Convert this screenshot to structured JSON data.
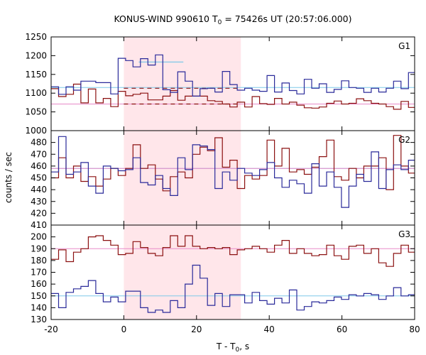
{
  "chart_data": {
    "type": "line",
    "title_main": "KONUS-WIND 990610 T",
    "title_sub": "0",
    "title_rest": " = 75426s UT (20:57:06.000)",
    "xlabel_main": "T - T",
    "xlabel_sub": "0",
    "xlabel_rest": ", s",
    "ylabel": "counts / sec",
    "xlim": [
      -20,
      80
    ],
    "xticks": [
      "-20",
      "0",
      "20",
      "40",
      "60",
      "80"
    ],
    "xtick_values": [
      -20,
      0,
      20,
      40,
      60,
      80
    ],
    "x_step": 2.048,
    "x_start": -20,
    "shaded_interval": [
      0,
      32.2
    ],
    "colors": {
      "shade": "#ffe6ea",
      "blue_hist": "#2a2a9a",
      "red_hist": "#8b1010",
      "blue_bg": "#7ec8e8",
      "red_bg": "#e88ac8"
    },
    "panels": [
      {
        "label": "G1",
        "ylim": [
          1000,
          1250
        ],
        "yticks": [
          "1250",
          "1200",
          "1150",
          "1100",
          "1050",
          "1000"
        ],
        "ytick_values": [
          1250,
          1200,
          1150,
          1100,
          1050,
          1000
        ],
        "blue_bg": 1115,
        "red_bg": 1071,
        "blue_values": [
          1117,
          1097,
          1117,
          1108,
          1132,
          1132,
          1128,
          1128,
          1098,
          1193,
          1187,
          1170,
          1192,
          1175,
          1202,
          1109,
          1102,
          1157,
          1132,
          1092,
          1112,
          1113,
          1103,
          1158,
          1123,
          1108,
          1113,
          1108,
          1105,
          1147,
          1103,
          1127,
          1107,
          1098,
          1137,
          1113,
          1125,
          1102,
          1110,
          1133,
          1115,
          1113,
          1102,
          1113,
          1103,
          1113,
          1132,
          1112,
          1155
        ],
        "red_values": [
          1112,
          1091,
          1097,
          1124,
          1074,
          1111,
          1074,
          1086,
          1064,
          1105,
          1093,
          1097,
          1100,
          1082,
          1082,
          1092,
          1107,
          1081,
          1092,
          1092,
          1092,
          1080,
          1078,
          1071,
          1063,
          1076,
          1063,
          1091,
          1072,
          1070,
          1086,
          1071,
          1076,
          1068,
          1061,
          1060,
          1063,
          1073,
          1079,
          1071,
          1073,
          1085,
          1080,
          1073,
          1071,
          1064,
          1057,
          1078,
          1062
        ],
        "blue_step_levels": [
          1183,
          1183,
          1183,
          1183,
          1183,
          1183
        ],
        "blue_step_range": [
          4.096,
          16.384
        ],
        "red_dashed_levels": [
          1113,
          1071
        ],
        "red_dashed_range": [
          0,
          32.2
        ]
      },
      {
        "label": "G2",
        "ylim": [
          410,
          490
        ],
        "yticks": [
          "480",
          "470",
          "460",
          "450",
          "440",
          "430",
          "420",
          "410"
        ],
        "ytick_values": [
          480,
          470,
          460,
          450,
          440,
          430,
          420,
          410
        ],
        "blue_bg": 458,
        "red_bg": 458,
        "blue_values": [
          455,
          485,
          453,
          455,
          463,
          443,
          437,
          460,
          458,
          456,
          457,
          467,
          446,
          444,
          452,
          441,
          435,
          467,
          457,
          478,
          477,
          474,
          441,
          455,
          448,
          458,
          454,
          452,
          457,
          463,
          450,
          442,
          448,
          445,
          437,
          462,
          443,
          455,
          442,
          425,
          443,
          453,
          447,
          472,
          441,
          457,
          461,
          457,
          465
        ],
        "red_values": [
          450,
          467,
          450,
          460,
          447,
          451,
          443,
          449,
          458,
          452,
          458,
          478,
          458,
          461,
          449,
          439,
          451,
          455,
          450,
          470,
          476,
          473,
          484,
          459,
          465,
          441,
          452,
          449,
          452,
          482,
          460,
          475,
          455,
          457,
          453,
          459,
          468,
          482,
          451,
          448,
          458,
          450,
          460,
          460,
          467,
          440,
          486,
          460,
          454
        ],
        "blue_step_levels": [],
        "blue_step_range": [
          0,
          0
        ],
        "red_dashed_levels": [],
        "red_dashed_range": [
          0,
          0
        ]
      },
      {
        "label": "G3",
        "ylim": [
          130,
          210
        ],
        "yticks": [
          "200",
          "190",
          "180",
          "170",
          "160",
          "150",
          "140",
          "130"
        ],
        "ytick_values": [
          200,
          190,
          180,
          170,
          160,
          150,
          140,
          130
        ],
        "blue_bg": 150,
        "red_bg": 190,
        "blue_values": [
          152,
          140,
          153,
          156,
          158,
          163,
          152,
          145,
          149,
          145,
          154,
          154,
          140,
          136,
          138,
          136,
          146,
          140,
          160,
          176,
          165,
          142,
          152,
          141,
          151,
          151,
          144,
          153,
          146,
          143,
          148,
          144,
          155,
          138,
          141,
          145,
          144,
          146,
          149,
          147,
          151,
          150,
          152,
          151,
          147,
          150,
          157,
          150,
          151
        ],
        "red_values": [
          181,
          189,
          179,
          187,
          190,
          200,
          201,
          197,
          193,
          185,
          186,
          196,
          191,
          186,
          184,
          191,
          201,
          192,
          201,
          192,
          190,
          191,
          190,
          191,
          185,
          189,
          190,
          192,
          190,
          187,
          193,
          197,
          186,
          190,
          186,
          184,
          185,
          193,
          184,
          181,
          192,
          193,
          186,
          190,
          178,
          175,
          186,
          193,
          187
        ],
        "blue_step_levels": [],
        "blue_step_range": [
          0,
          0
        ],
        "red_dashed_levels": [],
        "red_dashed_range": [
          0,
          0
        ]
      }
    ]
  }
}
